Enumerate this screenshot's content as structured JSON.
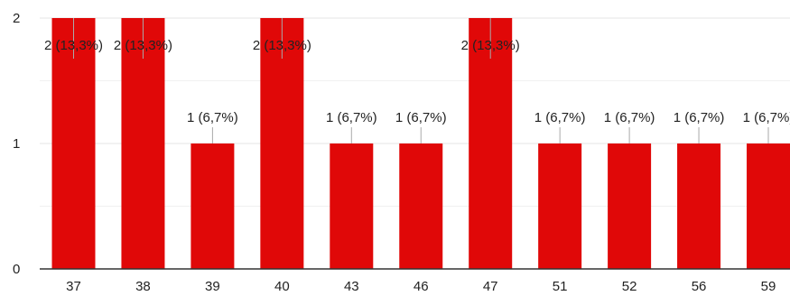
{
  "chart_data": {
    "type": "bar",
    "categories": [
      "37",
      "38",
      "39",
      "40",
      "43",
      "46",
      "47",
      "51",
      "52",
      "56",
      "59"
    ],
    "values": [
      2,
      2,
      1,
      2,
      1,
      1,
      2,
      1,
      1,
      1,
      1
    ],
    "data_labels": [
      "2 (13,3%)",
      "2 (13,3%)",
      "1 (6,7%)",
      "2 (13,3%)",
      "1 (6,7%)",
      "1 (6,7%)",
      "2 (13,3%)",
      "1 (6,7%)",
      "1 (6,7%)",
      "1 (6,7%)",
      "1 (6,7%)"
    ],
    "y_ticks": [
      "0",
      "1",
      "2"
    ],
    "ylim": [
      0,
      2
    ],
    "grid": true,
    "bar_color": "#e00808",
    "grid_color": "#e6e6e6",
    "axis_color": "#333333",
    "text_color": "#222222"
  }
}
